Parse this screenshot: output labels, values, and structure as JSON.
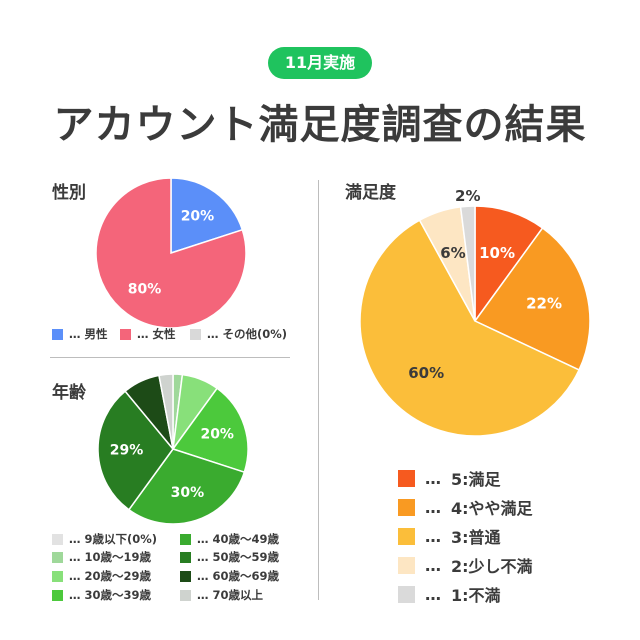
{
  "header": {
    "badge": "11月実施",
    "title": "アカウント満足度調査の結果"
  },
  "chart_data": [
    {
      "type": "pie",
      "title": "性別",
      "categories": [
        "男性",
        "女性",
        "その他(0%)"
      ],
      "values": [
        20,
        80,
        0
      ],
      "value_labels": [
        "20%",
        "80%",
        ""
      ],
      "colors": [
        "#5b8ff9",
        "#f4657a",
        "#d9d9d9"
      ],
      "legend_prefix": "…"
    },
    {
      "type": "pie",
      "title": "年齢",
      "categories": [
        "9歳以下(0%)",
        "10歳～19歳",
        "20歳～29歳",
        "30歳～39歳",
        "40歳～49歳",
        "50歳～59歳",
        "60歳～69歳",
        "70歳以上"
      ],
      "values": [
        0,
        2,
        8,
        20,
        30,
        29,
        8,
        3
      ],
      "value_labels": [
        "",
        "",
        "",
        "20%",
        "30%",
        "29%",
        "",
        ""
      ],
      "colors": [
        "#e2e2e2",
        "#9fd89a",
        "#88e07a",
        "#4cc93c",
        "#3aab2f",
        "#287d22",
        "#1d4b17",
        "#cfd3cf"
      ],
      "legend_prefix": "…"
    },
    {
      "type": "pie",
      "title": "満足度",
      "categories": [
        "5:満足",
        "4:やや満足",
        "3:普通",
        "2:少し不満",
        "1:不満"
      ],
      "values": [
        10,
        22,
        60,
        6,
        2
      ],
      "value_labels": [
        "10%",
        "22%",
        "60%",
        "6%",
        "2%"
      ],
      "colors": [
        "#f65a1f",
        "#f99a22",
        "#fbbe3a",
        "#fde6c3",
        "#dadada"
      ],
      "legend_prefix": "…"
    }
  ]
}
